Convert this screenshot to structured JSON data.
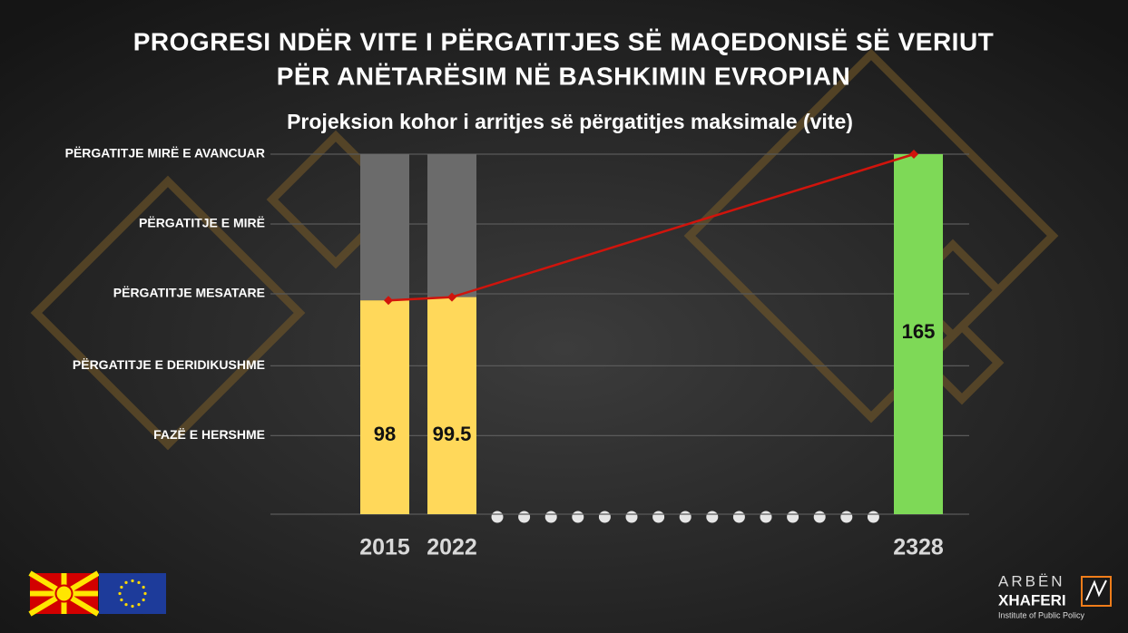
{
  "chart_data": {
    "type": "bar",
    "title_lines": [
      "PROGRESI NDËR VITE I PËRGATITJES SË MAQEDONISË SË VERIUT",
      "PËR ANËTARËSIM NË BASHKIMIN EVROPIAN"
    ],
    "subtitle": "Projeksion kohor i arritjes së përgatitjes maksimale (vite)",
    "categories": [
      "2015",
      "2022",
      "2328"
    ],
    "values": [
      98,
      99.5,
      165
    ],
    "colors": [
      "#ffd85a",
      "#ffd85a",
      "#7ed957"
    ],
    "track_color": "#6b6b6b",
    "line_color": "#d0140c",
    "ylim": [
      0,
      165
    ],
    "yticks": [
      {
        "value": 165,
        "label": "PËRGATITJE MIRË E AVANCUAR"
      },
      {
        "value": 133,
        "label": "PËRGATITJE E MIRË"
      },
      {
        "value": 101,
        "label": "PËRGATITJE MESATARE"
      },
      {
        "value": 68,
        "label": "PËRGATITJE E DERIDIKUSHME"
      },
      {
        "value": 36,
        "label": "FAZË E HERSHME"
      }
    ],
    "grid": true,
    "logo": {
      "name_top": "ARBËN",
      "name_bottom": "XHAFERI",
      "tagline": "Institute of Public Policy"
    }
  }
}
